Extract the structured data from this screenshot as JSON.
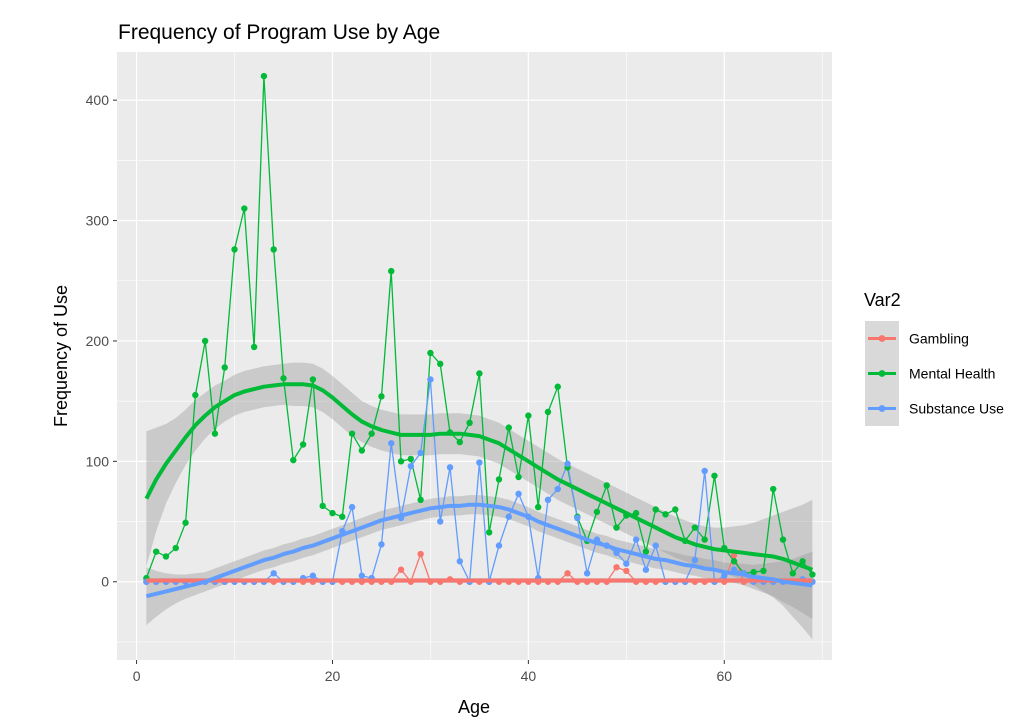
{
  "chart_data": {
    "type": "line",
    "title": "Frequency of Program Use by Age",
    "xlabel": "Age",
    "ylabel": "Frequency of Use",
    "xlim": [
      -2,
      71
    ],
    "ylim": [
      -65,
      440
    ],
    "x_ticks": [
      0,
      20,
      40,
      60
    ],
    "y_ticks": [
      0,
      100,
      200,
      300,
      400
    ],
    "grid": true,
    "legend_position": "right",
    "legend_title": "Var2",
    "series": [
      {
        "name": "Gambling",
        "color": "#F8766D",
        "x": [
          1,
          2,
          3,
          4,
          5,
          6,
          7,
          8,
          9,
          10,
          11,
          12,
          13,
          14,
          15,
          16,
          17,
          18,
          19,
          20,
          21,
          22,
          23,
          24,
          25,
          26,
          27,
          28,
          29,
          30,
          31,
          32,
          33,
          34,
          35,
          36,
          37,
          38,
          39,
          40,
          41,
          42,
          43,
          44,
          45,
          46,
          47,
          48,
          49,
          50,
          51,
          52,
          53,
          54,
          55,
          56,
          57,
          58,
          59,
          60,
          61,
          62,
          63,
          64,
          65,
          66,
          67,
          68,
          69
        ],
        "values": [
          0,
          0,
          0,
          0,
          0,
          0,
          0,
          0,
          0,
          0,
          0,
          0,
          0,
          0,
          0,
          0,
          0,
          0,
          0,
          0,
          0,
          0,
          0,
          0,
          0,
          0,
          10,
          0,
          23,
          0,
          0,
          2,
          0,
          0,
          0,
          0,
          0,
          0,
          0,
          0,
          0,
          0,
          0,
          7,
          0,
          0,
          0,
          0,
          12,
          9,
          0,
          0,
          0,
          0,
          0,
          0,
          0,
          0,
          0,
          0,
          22,
          0,
          0,
          0,
          0,
          0,
          0,
          0,
          0
        ],
        "smooth": [
          1,
          1,
          1,
          1,
          1,
          1,
          1,
          1,
          1,
          1,
          1,
          1,
          1,
          1,
          1,
          1,
          1,
          1,
          1,
          1,
          1,
          1,
          1,
          1,
          1,
          1,
          1,
          1,
          1,
          1,
          1,
          1,
          1,
          1,
          1,
          1,
          1,
          1,
          1,
          1,
          1,
          1,
          1,
          1,
          1,
          1,
          1,
          1,
          1,
          1,
          1,
          1,
          1,
          1,
          1,
          1,
          1,
          1,
          1,
          1,
          1,
          1,
          1,
          1,
          1,
          1,
          1,
          1,
          1
        ],
        "band_half": [
          2,
          2,
          2,
          2,
          2,
          2,
          2,
          2,
          2,
          2,
          2,
          2,
          2,
          2,
          2,
          2,
          2,
          2,
          2,
          2,
          2,
          2,
          2,
          2,
          2,
          2,
          2,
          2,
          2,
          2,
          2,
          2,
          2,
          2,
          2,
          2,
          2,
          2,
          2,
          2,
          2,
          2,
          2,
          2,
          2,
          2,
          2,
          2,
          2,
          2,
          2,
          2,
          2,
          2,
          2,
          2,
          2,
          2,
          2,
          2,
          2,
          2,
          2,
          2,
          2,
          2,
          2,
          2,
          2
        ]
      },
      {
        "name": "Mental Health",
        "color": "#00BA38",
        "x": [
          1,
          2,
          3,
          4,
          5,
          6,
          7,
          8,
          9,
          10,
          11,
          12,
          13,
          14,
          15,
          16,
          17,
          18,
          19,
          20,
          21,
          22,
          23,
          24,
          25,
          26,
          27,
          28,
          29,
          30,
          31,
          32,
          33,
          34,
          35,
          36,
          37,
          38,
          39,
          40,
          41,
          42,
          43,
          44,
          45,
          46,
          47,
          48,
          49,
          50,
          51,
          52,
          53,
          54,
          55,
          56,
          57,
          58,
          59,
          60,
          61,
          62,
          63,
          64,
          65,
          66,
          67,
          68,
          69
        ],
        "values": [
          3,
          25,
          21,
          28,
          49,
          155,
          200,
          123,
          178,
          276,
          310,
          195,
          420,
          276,
          169,
          101,
          114,
          168,
          63,
          57,
          54,
          123,
          109,
          123,
          154,
          258,
          100,
          102,
          68,
          190,
          181,
          124,
          116,
          132,
          173,
          41,
          85,
          128,
          87,
          138,
          62,
          141,
          162,
          95,
          54,
          34,
          58,
          80,
          45,
          55,
          57,
          25,
          60,
          56,
          60,
          34,
          45,
          35,
          88,
          28,
          17,
          7,
          8,
          9,
          77,
          35,
          7,
          17,
          6
        ],
        "smooth": [
          69,
          85,
          98,
          109,
          120,
          130,
          138,
          145,
          150,
          155,
          158,
          160,
          162,
          163,
          164,
          164,
          164,
          163,
          159,
          153,
          146,
          139,
          133,
          129,
          126,
          124,
          122,
          122,
          122,
          122,
          123,
          123,
          123,
          122,
          121,
          118,
          115,
          110,
          105,
          100,
          95,
          90,
          85,
          81,
          77,
          73,
          69,
          65,
          61,
          57,
          53,
          49,
          45,
          41,
          37,
          34,
          31,
          29,
          27,
          26,
          25,
          24,
          23,
          22,
          21,
          19,
          16,
          13,
          10
        ],
        "band_half": [
          56,
          43,
          33,
          27,
          23,
          21,
          19,
          18,
          17,
          17,
          17,
          17,
          17,
          17,
          17,
          18,
          18,
          18,
          18,
          18,
          18,
          18,
          17,
          17,
          17,
          17,
          17,
          17,
          17,
          17,
          17,
          17,
          17,
          17,
          17,
          17,
          17,
          17,
          17,
          17,
          17,
          17,
          17,
          17,
          17,
          17,
          17,
          17,
          17,
          17,
          17,
          17,
          17,
          17,
          17,
          17,
          17,
          17,
          18,
          19,
          21,
          23,
          26,
          30,
          34,
          39,
          45,
          51,
          58
        ]
      },
      {
        "name": "Substance Use",
        "color": "#619CFF",
        "x": [
          1,
          2,
          3,
          4,
          5,
          6,
          7,
          8,
          9,
          10,
          11,
          12,
          13,
          14,
          15,
          16,
          17,
          18,
          19,
          20,
          21,
          22,
          23,
          24,
          25,
          26,
          27,
          28,
          29,
          30,
          31,
          32,
          33,
          34,
          35,
          36,
          37,
          38,
          39,
          40,
          41,
          42,
          43,
          44,
          45,
          46,
          47,
          48,
          49,
          50,
          51,
          52,
          53,
          54,
          55,
          56,
          57,
          58,
          59,
          60,
          61,
          62,
          63,
          64,
          65,
          66,
          67,
          68,
          69
        ],
        "values": [
          0,
          0,
          0,
          0,
          0,
          0,
          0,
          0,
          0,
          0,
          0,
          0,
          0,
          7,
          0,
          0,
          3,
          5,
          0,
          0,
          42,
          62,
          5,
          3,
          31,
          115,
          53,
          96,
          107,
          168,
          50,
          95,
          17,
          0,
          99,
          0,
          30,
          54,
          73,
          54,
          3,
          68,
          77,
          98,
          53,
          7,
          35,
          30,
          24,
          15,
          35,
          10,
          30,
          0,
          0,
          0,
          18,
          92,
          0,
          5,
          10,
          7,
          0,
          0,
          0,
          0,
          0,
          2,
          0
        ],
        "smooth": [
          -12,
          -10,
          -8,
          -6,
          -4,
          -2,
          0,
          3,
          6,
          9,
          12,
          15,
          18,
          20,
          23,
          25,
          28,
          30,
          33,
          36,
          39,
          42,
          45,
          48,
          51,
          53,
          55,
          57,
          59,
          61,
          62,
          63,
          63,
          64,
          64,
          63,
          62,
          60,
          57,
          54,
          50,
          47,
          44,
          41,
          38,
          35,
          32,
          30,
          27,
          25,
          23,
          21,
          19,
          18,
          16,
          14,
          13,
          11,
          10,
          8,
          7,
          6,
          4,
          3,
          2,
          0,
          -1,
          -2,
          -3
        ],
        "band_half": [
          24,
          19,
          15,
          12,
          10,
          9,
          8,
          8,
          8,
          8,
          8,
          8,
          8,
          8,
          8,
          8,
          8,
          8,
          8,
          8,
          8,
          8,
          8,
          8,
          8,
          8,
          8,
          8,
          8,
          8,
          8,
          8,
          8,
          8,
          8,
          8,
          8,
          8,
          8,
          8,
          8,
          8,
          8,
          8,
          8,
          8,
          8,
          8,
          8,
          8,
          8,
          8,
          8,
          8,
          8,
          8,
          8,
          8,
          8,
          8,
          8,
          9,
          10,
          12,
          14,
          17,
          20,
          24,
          28
        ]
      }
    ]
  }
}
